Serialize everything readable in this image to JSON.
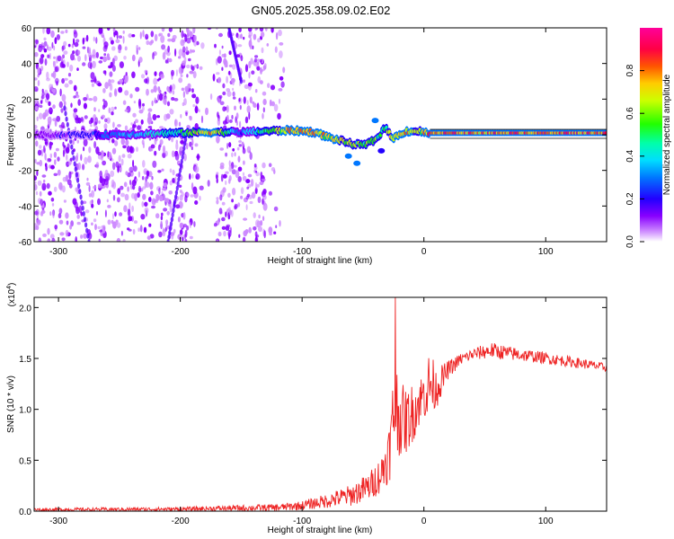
{
  "title": "GN05.2025.358.09.02.E02",
  "chart_data": [
    {
      "type": "heatmap",
      "title": "GN05.2025.358.09.02.E02",
      "xlabel": "Height of straight line (km)",
      "ylabel": "Frequency (Hz)",
      "xlim": [
        -320,
        150
      ],
      "ylim": [
        -60,
        60
      ],
      "x_ticks": [
        -300,
        -200,
        -100,
        0,
        100
      ],
      "x_tick_labels": [
        "-300",
        "-200",
        "-100",
        "0",
        "100"
      ],
      "y_ticks": [
        -60,
        -40,
        -20,
        0,
        20,
        40,
        60
      ],
      "y_tick_labels": [
        "-60",
        "-40",
        "-20",
        "0",
        "20",
        "40",
        "60"
      ],
      "colorbar": {
        "label": "Normalized spectral amplitude",
        "range": [
          0,
          1
        ],
        "ticks": [
          0.0,
          0.2,
          0.4,
          0.6,
          0.8
        ],
        "tick_labels": [
          "0.0",
          "0.2",
          "0.4",
          "0.6",
          "0.8"
        ],
        "colors": [
          "#ffffff",
          "#8800ff",
          "#2200ff",
          "#00aaff",
          "#00ffaa",
          "#22ff00",
          "#ccff00",
          "#ffcc00",
          "#ff5500",
          "#ff0044",
          "#ff0099"
        ]
      },
      "noise_region_x": [
        -320,
        -130
      ],
      "gap_x": [
        -185,
        -170
      ],
      "carrier_path": [
        {
          "x": -320,
          "f": 0,
          "a": 0.15
        },
        {
          "x": -270,
          "f": 0,
          "a": 0.3
        },
        {
          "x": -230,
          "f": 0.5,
          "a": 0.45
        },
        {
          "x": -200,
          "f": 1,
          "a": 0.55
        },
        {
          "x": -175,
          "f": 1.5,
          "a": 0.85
        },
        {
          "x": -150,
          "f": 1.5,
          "a": 0.35
        },
        {
          "x": -130,
          "f": 2,
          "a": 0.6
        },
        {
          "x": -110,
          "f": 2.5,
          "a": 0.85
        },
        {
          "x": -90,
          "f": 1.5,
          "a": 0.9
        },
        {
          "x": -80,
          "f": -1,
          "a": 0.8
        },
        {
          "x": -70,
          "f": -3,
          "a": 0.75
        },
        {
          "x": -60,
          "f": -5,
          "a": 0.7
        },
        {
          "x": -50,
          "f": -6,
          "a": 0.65
        },
        {
          "x": -40,
          "f": -3,
          "a": 0.7
        },
        {
          "x": -32,
          "f": 4,
          "a": 0.6
        },
        {
          "x": -25,
          "f": -2,
          "a": 0.8
        },
        {
          "x": -15,
          "f": 2,
          "a": 0.85
        },
        {
          "x": -5,
          "f": 2,
          "a": 0.7
        },
        {
          "x": 5,
          "f": 1,
          "a": 0.9
        },
        {
          "x": 150,
          "f": 1,
          "a": 0.95
        }
      ],
      "side_blobs": [
        {
          "x": -62,
          "f": -12,
          "a": 0.3
        },
        {
          "x": -55,
          "f": -16,
          "a": 0.3
        },
        {
          "x": -35,
          "f": -9,
          "a": 0.25
        },
        {
          "x": -40,
          "f": 8,
          "a": 0.35
        }
      ],
      "reference_lines_f": [
        3,
        -2
      ]
    },
    {
      "type": "line",
      "xlabel": "Height of straight line (km)",
      "ylabel": "SNR (10 * v/v)",
      "y_scale_label": "(x10",
      "y_scale_exponent": "4",
      "xlim": [
        -320,
        150
      ],
      "ylim": [
        0,
        2.1
      ],
      "x_ticks": [
        -300,
        -200,
        -100,
        0,
        100
      ],
      "x_tick_labels": [
        "-300",
        "-200",
        "-100",
        "0",
        "100"
      ],
      "y_ticks": [
        0.0,
        0.5,
        1.0,
        1.5,
        2.0
      ],
      "y_tick_labels": [
        "0.0",
        "0.5",
        "1.0",
        "1.5",
        "2.0"
      ],
      "series": [
        {
          "name": "SNR",
          "color": "#ee2222",
          "envelope": {
            "x": [
              -320,
              -200,
              -150,
              -120,
              -100,
              -80,
              -60,
              -45,
              -35,
              -28,
              -24,
              -20,
              -15,
              -10,
              -5,
              0,
              5,
              10,
              20,
              30,
              40,
              55,
              70,
              90,
              110,
              130,
              150
            ],
            "low": [
              0.0,
              0.0,
              0.0,
              0.0,
              0.01,
              0.03,
              0.05,
              0.1,
              0.18,
              0.3,
              0.45,
              0.55,
              0.55,
              0.65,
              0.8,
              0.9,
              0.9,
              1.0,
              1.3,
              1.43,
              1.48,
              1.5,
              1.48,
              1.46,
              1.43,
              1.4,
              1.37
            ],
            "high": [
              0.03,
              0.04,
              0.06,
              0.07,
              0.1,
              0.17,
              0.26,
              0.38,
              0.55,
              0.9,
              1.6,
              1.3,
              1.2,
              1.25,
              1.3,
              1.4,
              1.6,
              1.4,
              1.48,
              1.55,
              1.6,
              1.66,
              1.62,
              1.58,
              1.54,
              1.5,
              1.45
            ]
          },
          "spike": {
            "x": -23.5,
            "y": 2.1
          }
        }
      ]
    }
  ]
}
